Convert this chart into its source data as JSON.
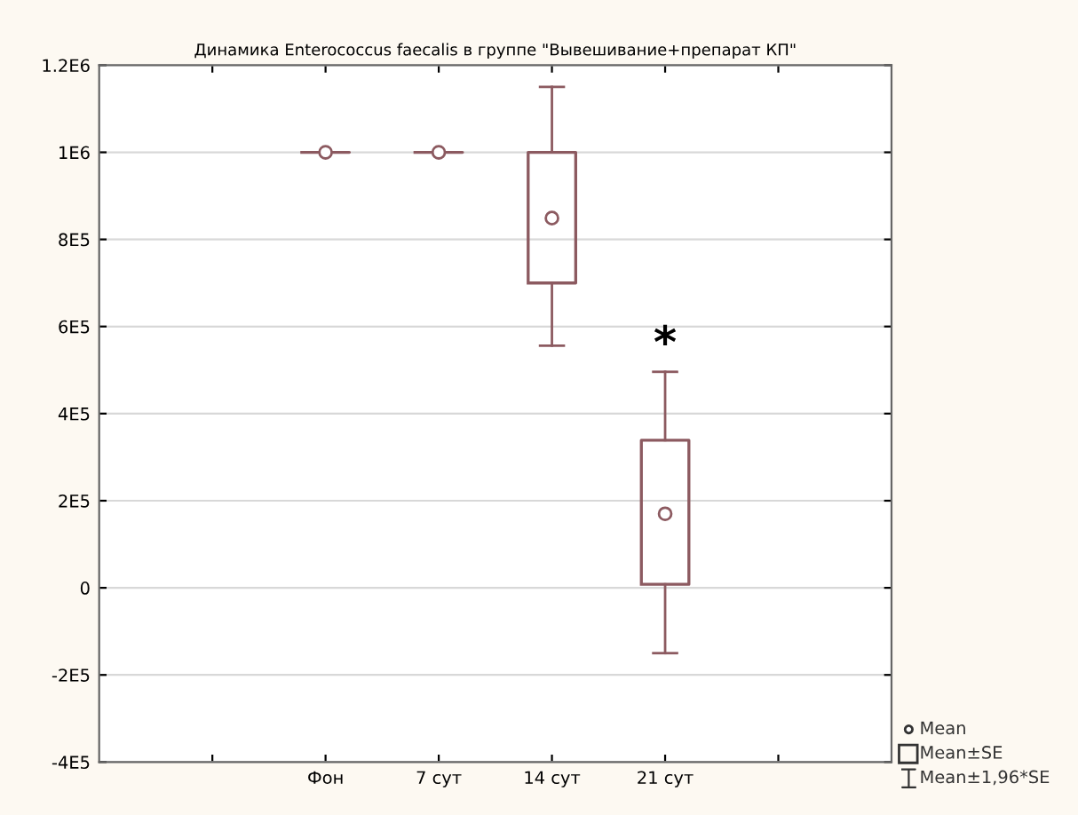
{
  "chart_data": {
    "type": "box",
    "title": "Динамика Enterococcus faecalis в группе \"Вывешивание+препарат КП\"",
    "categories": [
      null,
      "Фон",
      "7 сут",
      "14 сут",
      "21 сут",
      null
    ],
    "boxes": [
      null,
      {
        "low": 1000000,
        "q1": 1000000,
        "q3": 1000000,
        "high": 1000000,
        "mean": 1000000
      },
      {
        "low": 1000000,
        "q1": 1000000,
        "q3": 1000000,
        "high": 1000000,
        "mean": 1000000
      },
      {
        "low": 556000,
        "q1": 700000,
        "q3": 1000000,
        "high": 1150000,
        "mean": 849000
      },
      {
        "low": -150000,
        "q1": 8000,
        "q3": 339000,
        "high": 496000,
        "mean": 170000
      },
      null
    ],
    "color": "#8c5a60",
    "ylim": [
      -400000,
      1200000
    ],
    "yticks": [
      {
        "value": -400000,
        "label": "-4E5"
      },
      {
        "value": -200000,
        "label": "-2E5"
      },
      0,
      {
        "value": 200000,
        "label": "2E5"
      },
      {
        "value": 400000,
        "label": "4E5"
      },
      {
        "value": 600000,
        "label": "6E5"
      },
      {
        "value": 800000,
        "label": "8E5"
      },
      {
        "value": 1000000,
        "label": "1E6"
      },
      {
        "value": 1200000,
        "label": "1.2E6"
      }
    ],
    "grid": "y",
    "annotations": [
      "*",
      "Mean",
      "Mean±SE",
      "Mean±1,96*SE"
    ]
  }
}
